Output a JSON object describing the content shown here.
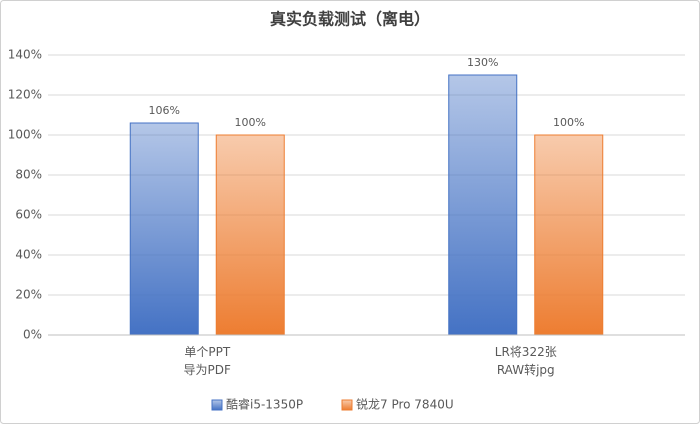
{
  "chart_data": {
    "type": "bar",
    "title": "真实负载测试（离电）",
    "categories": [
      "单个PPT\n导为PDF",
      "LR将322张\nRAW转jpg"
    ],
    "series": [
      {
        "name": "酷睿i5-1350P",
        "color": "#4472c4",
        "values": [
          106,
          130
        ],
        "value_labels": [
          "106%",
          "130%"
        ]
      },
      {
        "name": "锐龙7 Pro 7840U",
        "color": "#ed7d31",
        "values": [
          100,
          100
        ],
        "value_labels": [
          "100%",
          "100%"
        ]
      }
    ],
    "ylim": [
      0,
      140
    ],
    "yticks": [
      {
        "value": 0,
        "label": "0%"
      },
      {
        "value": 20,
        "label": "20%"
      },
      {
        "value": 40,
        "label": "40%"
      },
      {
        "value": 60,
        "label": "60%"
      },
      {
        "value": 80,
        "label": "80%"
      },
      {
        "value": 100,
        "label": "100%"
      },
      {
        "value": 120,
        "label": "120%"
      },
      {
        "value": 140,
        "label": "140%"
      }
    ],
    "grid": true,
    "legend": "bottom"
  }
}
